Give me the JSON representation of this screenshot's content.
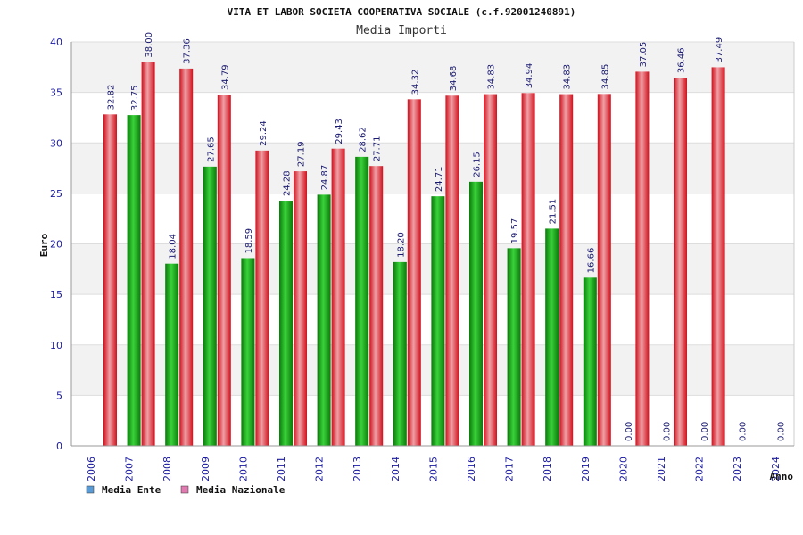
{
  "chart_data": {
    "type": "bar",
    "title": "VITA ET LABOR SOCIETA COOPERATIVA SOCIALE (c.f.92001240891)",
    "subtitle": "Media Importi",
    "xlabel": "Anno",
    "ylabel": "Euro",
    "ylim": [
      0,
      40
    ],
    "yticks": [
      0,
      5,
      10,
      15,
      20,
      25,
      30,
      35,
      40
    ],
    "grid": true,
    "legend_position": "bottom-left",
    "categories": [
      "2006",
      "2007",
      "2008",
      "2009",
      "2010",
      "2011",
      "2012",
      "2013",
      "2014",
      "2015",
      "2016",
      "2017",
      "2018",
      "2019",
      "2020",
      "2021",
      "2022",
      "2023",
      "2024"
    ],
    "series": [
      {
        "name": "Media Ente",
        "color": "#1aa01a",
        "legend_color": "#5b9bd5",
        "values": [
          null,
          32.75,
          18.04,
          27.65,
          18.59,
          24.28,
          24.87,
          28.62,
          18.2,
          24.71,
          26.15,
          19.57,
          21.51,
          16.66,
          0.0,
          0.0,
          0.0,
          0.0,
          0.0
        ],
        "labels": [
          "",
          "32.75",
          "18.04",
          "27.65",
          "18.59",
          "24.28",
          "24.87",
          "28.62",
          "18.20",
          "24.71",
          "26.15",
          "19.57",
          "21.51",
          "16.66",
          "0.00",
          "0.00",
          "0.00",
          "0.00",
          "0.00"
        ]
      },
      {
        "name": "Media Nazionale",
        "color": "#e0202a",
        "legend_color": "#e07ab0",
        "values": [
          32.82,
          38.0,
          37.36,
          34.79,
          29.24,
          27.19,
          29.43,
          27.71,
          34.32,
          34.68,
          34.83,
          34.94,
          34.83,
          34.85,
          37.05,
          36.46,
          37.49,
          null,
          null
        ],
        "labels": [
          "32.82",
          "38.00",
          "37.36",
          "34.79",
          "29.24",
          "27.19",
          "29.43",
          "27.71",
          "34.32",
          "34.68",
          "34.83",
          "34.94",
          "34.83",
          "34.85",
          "37.05",
          "36.46",
          "37.49",
          "",
          ""
        ]
      }
    ]
  }
}
